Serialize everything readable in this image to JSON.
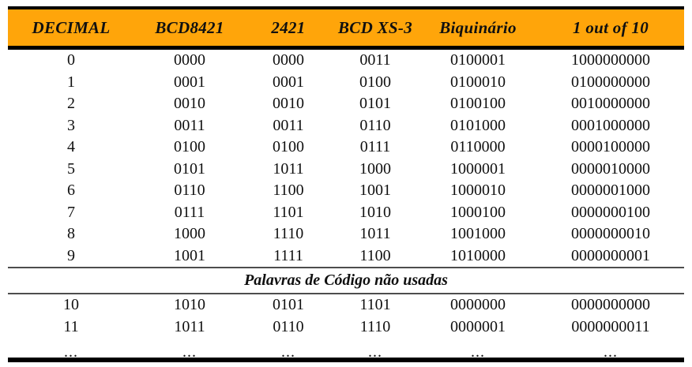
{
  "table": {
    "title_semantic": "decimal-codes-table",
    "columns": [
      {
        "id": "decimal",
        "label": "DECIMAL"
      },
      {
        "id": "bcd8421",
        "label": "BCD8421"
      },
      {
        "id": "c2421",
        "label": "2421"
      },
      {
        "id": "bcdxs3",
        "label": "BCD XS-3"
      },
      {
        "id": "biquinario",
        "label": "Biquinário"
      },
      {
        "id": "oneoutof10",
        "label": "1 out of 10"
      }
    ],
    "rows": [
      {
        "cells": [
          "0",
          "0000",
          "0000",
          "0011",
          "0100001",
          "1000000000"
        ]
      },
      {
        "cells": [
          "1",
          "0001",
          "0001",
          "0100",
          "0100010",
          "0100000000"
        ]
      },
      {
        "cells": [
          "2",
          "0010",
          "0010",
          "0101",
          "0100100",
          "0010000000"
        ]
      },
      {
        "cells": [
          "3",
          "0011",
          "0011",
          "0110",
          "0101000",
          "0001000000"
        ]
      },
      {
        "cells": [
          "4",
          "0100",
          "0100",
          "0111",
          "0110000",
          "0000100000"
        ]
      },
      {
        "cells": [
          "5",
          "0101",
          "1011",
          "1000",
          "1000001",
          "0000010000"
        ]
      },
      {
        "cells": [
          "6",
          "0110",
          "1100",
          "1001",
          "1000010",
          "0000001000"
        ]
      },
      {
        "cells": [
          "7",
          "0111",
          "1101",
          "1010",
          "1000100",
          "0000000100"
        ]
      },
      {
        "cells": [
          "8",
          "1000",
          "1110",
          "1011",
          "1001000",
          "0000000010"
        ]
      },
      {
        "cells": [
          "9",
          "1001",
          "1111",
          "1100",
          "1010000",
          "0000000001"
        ]
      }
    ],
    "divider": {
      "label": "Palavras de Código não usadas"
    },
    "unused_rows": [
      {
        "cells": [
          "10",
          "1010",
          "0101",
          "1101",
          "0000000",
          "0000000000"
        ]
      },
      {
        "cells": [
          "11",
          "1011",
          "0110",
          "1110",
          "0000001",
          "0000000011"
        ]
      }
    ],
    "ellipsis_row": {
      "cells": [
        "...",
        "...",
        "...",
        "...",
        "...",
        "..."
      ]
    },
    "colors": {
      "header_bg": "#FFA50A",
      "header_text": "#101010",
      "body_text": "#101010",
      "outer_border": "#000000",
      "divider_line": "#4D4D4D",
      "page_bg": "#FFFFFF"
    }
  }
}
